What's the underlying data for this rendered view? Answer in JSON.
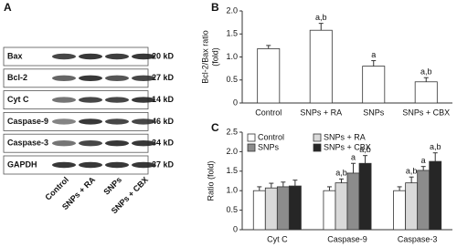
{
  "blot": {
    "label": "A",
    "rows": [
      {
        "name": "Bax",
        "size": "20 kD"
      },
      {
        "name": "Bcl-2",
        "size": "27 kD"
      },
      {
        "name": "Cyt C",
        "size": "14 kD"
      },
      {
        "name": "Caspase-9",
        "size": "46 kD"
      },
      {
        "name": "Caspase-3",
        "size": "34 kD"
      },
      {
        "name": "GAPDH",
        "size": "37 kD"
      }
    ],
    "lanes": [
      "Control",
      "SNPs + RA",
      "SNPs",
      "SNPs + CBX"
    ]
  },
  "chart_data": [
    {
      "type": "bar",
      "label": "B",
      "ylabel": [
        "Bcl-2/Bax ratio",
        "(fold)"
      ],
      "categories": [
        "Control",
        "SNPs + RA",
        "SNPs",
        "SNPs + CBX"
      ],
      "values": [
        1.18,
        1.58,
        0.8,
        0.46
      ],
      "errors": [
        0.07,
        0.15,
        0.12,
        0.09
      ],
      "annotations": [
        null,
        "a,b",
        "a",
        "a,b"
      ],
      "color": "#ffffff",
      "ylim": [
        0,
        2
      ],
      "yticks": [
        0,
        0.5,
        {
          "value": 1,
          "label": "1.0"
        },
        1.5,
        {
          "value": 2,
          "label": "2.0"
        }
      ]
    },
    {
      "type": "grouped_bar",
      "label": "C",
      "ylabel": "Ratio (fold)",
      "categories": [
        "Cyt C",
        "Caspase-9",
        "Caspase-3"
      ],
      "series": [
        {
          "name": "Control",
          "color": "#ffffff",
          "values": [
            1.0,
            1.0,
            1.0
          ],
          "errors": [
            0.1,
            0.1,
            0.1
          ],
          "annotations": [
            null,
            null,
            null
          ]
        },
        {
          "name": "SNPs + RA",
          "color": "#d9d9d9",
          "values": [
            1.07,
            1.2,
            1.2
          ],
          "errors": [
            0.12,
            0.1,
            0.15
          ],
          "annotations": [
            null,
            "a,b",
            "a,b"
          ]
        },
        {
          "name": "SNPs",
          "color": "#8c8c8c",
          "values": [
            1.1,
            1.45,
            1.52
          ],
          "errors": [
            0.12,
            0.25,
            0.1
          ],
          "annotations": [
            null,
            "a",
            "a"
          ]
        },
        {
          "name": "SNPs + CBX",
          "color": "#262626",
          "values": [
            1.12,
            1.7,
            1.75
          ],
          "errors": [
            0.15,
            0.2,
            0.22
          ],
          "annotations": [
            null,
            "a,b",
            "a,b"
          ]
        }
      ],
      "ylim": [
        0,
        2.5
      ],
      "yticks": [
        0,
        0.5,
        {
          "value": 1,
          "label": "1.0"
        },
        1.5,
        {
          "value": 2,
          "label": "2.0"
        },
        2.5
      ],
      "legend": "upper left"
    }
  ]
}
